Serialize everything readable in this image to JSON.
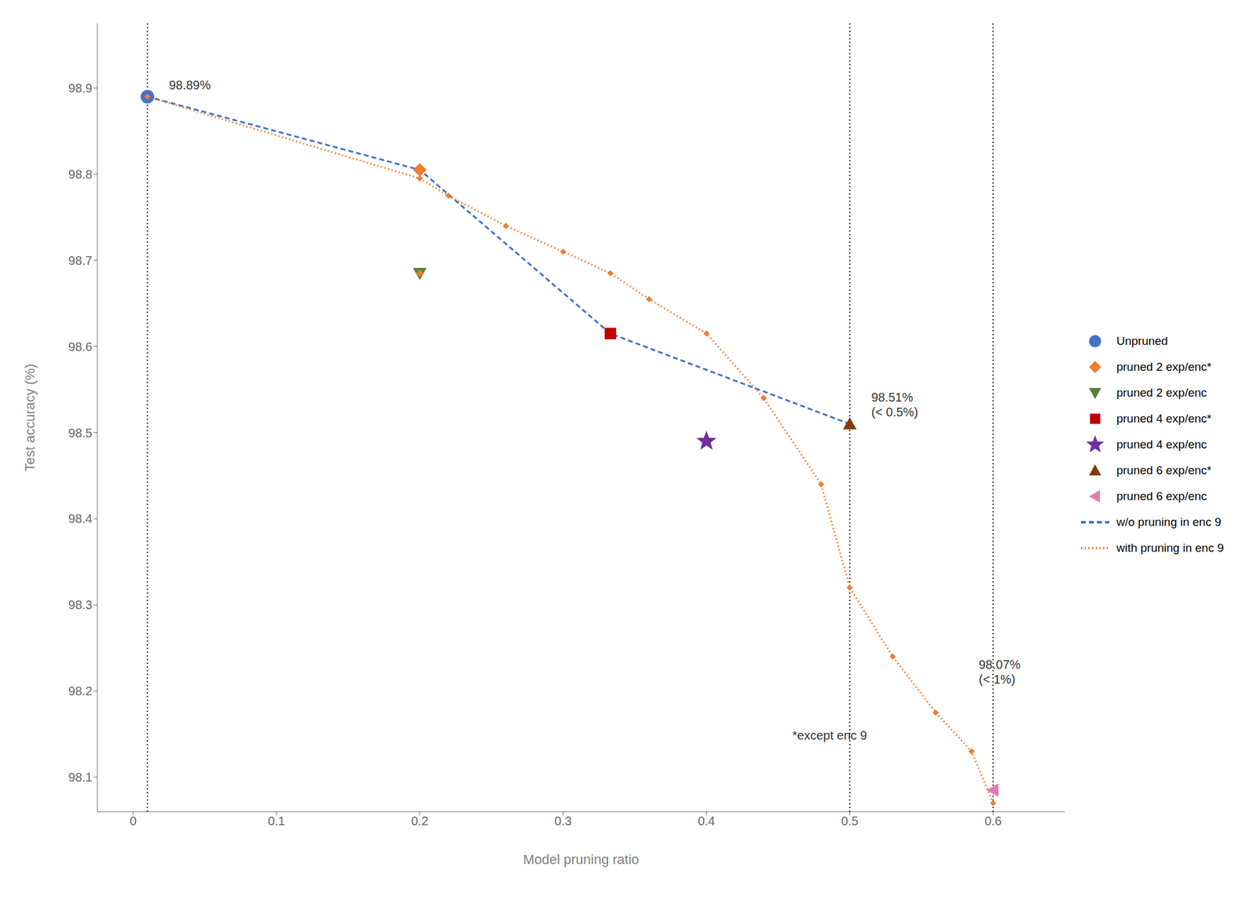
{
  "chart_data": {
    "type": "line",
    "xlabel": "Model pruning ratio",
    "ylabel": "Test accuracy (%)",
    "xlim": [
      -0.025,
      0.65
    ],
    "ylim": [
      98.06,
      98.975
    ],
    "xticks": [
      0.0,
      0.1,
      0.2,
      0.3,
      0.4,
      0.5,
      0.6
    ],
    "yticks": [
      98.1,
      98.2,
      98.3,
      98.4,
      98.5,
      98.6,
      98.7,
      98.8,
      98.9
    ],
    "vlines": [
      0.01,
      0.5,
      0.6
    ],
    "legend": "right",
    "series": [
      {
        "type": "scatter",
        "name": "Unpruned",
        "color": "#4472c4",
        "marker": "circle",
        "x": [
          0.01
        ],
        "values": [
          98.89
        ]
      },
      {
        "type": "scatter",
        "name": "pruned 2 exp/enc*",
        "color": "#ed7d31",
        "marker": "diamond",
        "x": [
          0.2
        ],
        "values": [
          98.805
        ]
      },
      {
        "type": "scatter",
        "name": "pruned 2 exp/enc",
        "color": "#548235",
        "marker": "triangle_down",
        "x": [
          0.2
        ],
        "values": [
          98.685
        ]
      },
      {
        "type": "scatter",
        "name": "pruned 4 exp/enc*",
        "color": "#c00000",
        "marker": "square",
        "x": [
          0.333
        ],
        "values": [
          98.615
        ]
      },
      {
        "type": "scatter",
        "name": "pruned 4 exp/enc",
        "color": "#7030a0",
        "marker": "star",
        "x": [
          0.4
        ],
        "values": [
          98.49
        ]
      },
      {
        "type": "scatter",
        "name": "pruned 6 exp/enc*",
        "color": "#843c0c",
        "marker": "triangle_up",
        "x": [
          0.5
        ],
        "values": [
          98.51
        ]
      },
      {
        "type": "scatter",
        "name": "pruned 6 exp/enc",
        "color": "#e07bb5",
        "marker": "triangle_left",
        "x": [
          0.6
        ],
        "values": [
          98.085
        ]
      },
      {
        "type": "line",
        "name": "w/o pruning in enc 9",
        "color": "#4472c4",
        "line_style": "dashed",
        "x": [
          0.01,
          0.2,
          0.333,
          0.5
        ],
        "values": [
          98.89,
          98.805,
          98.615,
          98.51
        ]
      },
      {
        "type": "line",
        "name": "with pruning in enc 9",
        "color": "#ed7d31",
        "line_style": "dotted",
        "marker": "diamond",
        "x": [
          0.01,
          0.2,
          0.22,
          0.26,
          0.3,
          0.333,
          0.36,
          0.4,
          0.44,
          0.48,
          0.5,
          0.53,
          0.56,
          0.585,
          0.6
        ],
        "values": [
          98.89,
          98.795,
          98.775,
          98.74,
          98.71,
          98.685,
          98.655,
          98.615,
          98.54,
          98.44,
          98.32,
          98.24,
          98.175,
          98.13,
          98.07
        ]
      },
      {
        "type": "scatter",
        "color": "#ed7d31",
        "marker": "diamond",
        "x": [
          0.2
        ],
        "values": [
          98.685
        ]
      }
    ],
    "annotations": [
      {
        "x": 0.025,
        "y": 98.895,
        "text": "98.89%"
      },
      {
        "x": 0.515,
        "y": 98.515,
        "text": "98.51%\n(< 0.5%)"
      },
      {
        "x": 0.59,
        "y": 98.205,
        "text": "98.07%\n(< 1%)"
      },
      {
        "x": 0.46,
        "y": 98.14,
        "text": "*except enc 9"
      }
    ]
  }
}
